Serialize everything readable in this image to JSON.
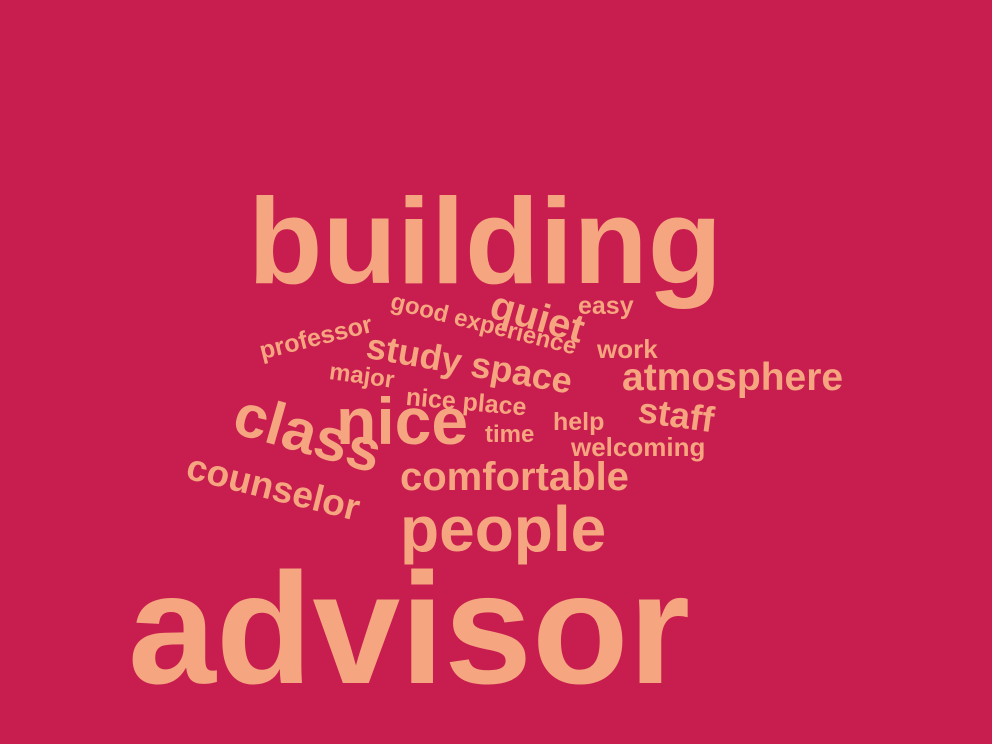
{
  "word_cloud": {
    "colors": {
      "background": "#c81d4f",
      "text": "#f5a57f"
    },
    "words": {
      "building": "building",
      "advisor": "advisor",
      "people": "people",
      "comfortable": "comfortable",
      "atmosphere": "atmosphere",
      "nice": "nice",
      "class": "class",
      "counselor": "counselor",
      "quiet": "quiet",
      "study_space": "study space",
      "staff": "staff",
      "easy": "easy",
      "good_experience": "good experience",
      "professor": "professor",
      "work": "work",
      "major": "major",
      "nice_place": "nice place",
      "help": "help",
      "time": "time",
      "welcoming": "welcoming"
    }
  }
}
